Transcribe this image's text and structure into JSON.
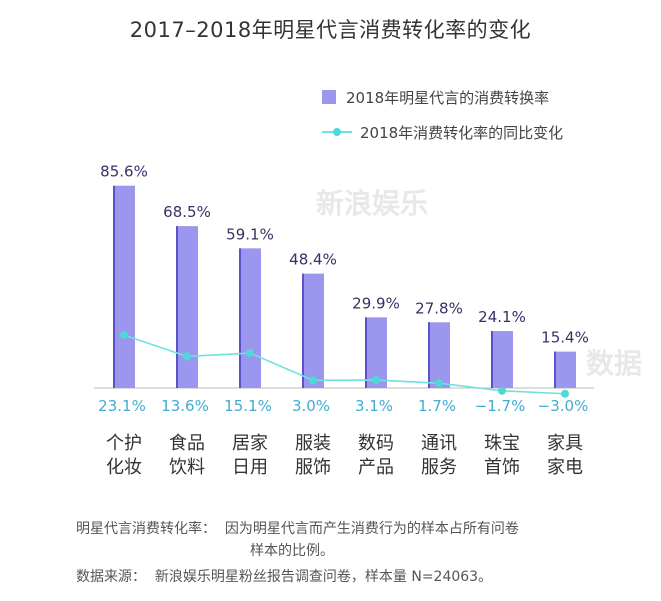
{
  "chart_data": {
    "type": "bar",
    "title": "2017–2018年明星代言消费转化率的变化",
    "categories": [
      [
        "个护",
        "化妆"
      ],
      [
        "食品",
        "饮料"
      ],
      [
        "居家",
        "日用"
      ],
      [
        "服装",
        "服饰"
      ],
      [
        "数码",
        "产品"
      ],
      [
        "通讯",
        "服务"
      ],
      [
        "珠宝",
        "首饰"
      ],
      [
        "家具",
        "家电"
      ]
    ],
    "series": [
      {
        "name": "2018年明星代言的消费转换率",
        "type": "bar",
        "values": [
          85.6,
          68.5,
          59.1,
          48.4,
          29.9,
          27.8,
          24.1,
          15.4
        ],
        "labels": [
          "85.6%",
          "68.5%",
          "59.1%",
          "48.4%",
          "29.9%",
          "27.8%",
          "24.1%",
          "15.4%"
        ]
      },
      {
        "name": "2018年消费转化率的同比变化",
        "type": "line",
        "values": [
          23.1,
          13.6,
          15.1,
          3.0,
          3.1,
          1.7,
          -1.7,
          -3.0
        ],
        "labels": [
          "23.1%",
          "13.6%",
          "15.1%",
          "3.0%",
          "3.1%",
          "1.7%",
          "−1.7%",
          "−3.0%"
        ]
      }
    ],
    "colors": {
      "bar": "#9b96ee",
      "bar_edge": "#5a52c8",
      "line": "#6ee2e0",
      "point": "#4fd8d6",
      "label": "#44acd0",
      "baseline": "#bbbbbb"
    },
    "grid": false,
    "legend_position": "top-right"
  },
  "watermarks": [
    "新浪娱乐",
    "数据"
  ],
  "footnotes": {
    "definition": "明星代言消费转化率：  因为明星代言而产生消费行为的样本占所有问卷",
    "definition_cont": "样本的比例。",
    "source": "数据来源：  新浪娱乐明星粉丝报告调查问卷，样本量 N=24063。"
  }
}
